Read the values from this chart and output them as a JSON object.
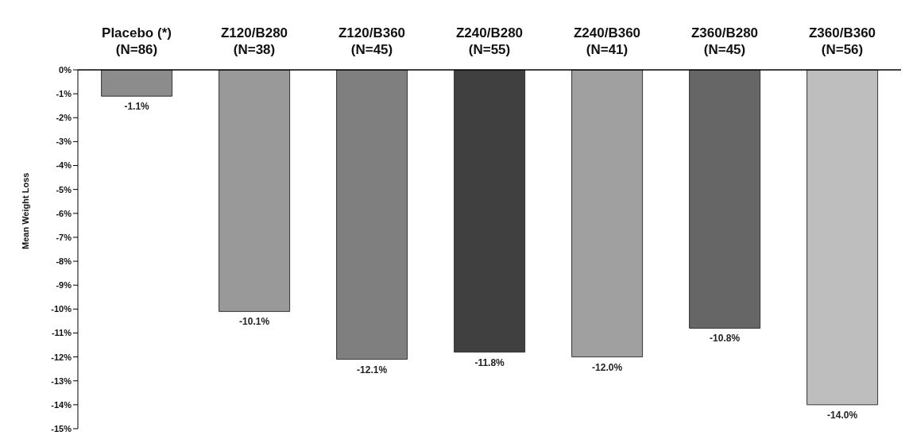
{
  "chart_data": {
    "type": "bar",
    "ylabel": "Mean Weight Loss",
    "categories": [
      "Placebo (*)\n(N=86)",
      "Z120/B280\n(N=38)",
      "Z120/B360\n(N=45)",
      "Z240/B280\n(N=55)",
      "Z240/B360\n(N=41)",
      "Z360/B280\n(N=45)",
      "Z360/B360\n(N=56)"
    ],
    "values": [
      -1.1,
      -10.1,
      -12.1,
      -11.8,
      -12.0,
      -10.8,
      -14.0
    ],
    "colors": [
      "#8c8c8c",
      "#999999",
      "#7f7f7f",
      "#404040",
      "#a0a0a0",
      "#666666",
      "#bebebe"
    ],
    "value_labels": [
      "-1.1%",
      "-10.1%",
      "-12.1%",
      "-11.8%",
      "-12.0%",
      "-10.8%",
      "-14.0%"
    ],
    "ylim": [
      -15,
      0
    ],
    "yticks": [
      {
        "value": 0,
        "label": "0%"
      },
      {
        "value": -1,
        "label": "-1%"
      },
      {
        "value": -2,
        "label": "-2%"
      },
      {
        "value": -3,
        "label": "-3%"
      },
      {
        "value": -4,
        "label": "-4%"
      },
      {
        "value": -5,
        "label": "-5%"
      },
      {
        "value": -6,
        "label": "-6%"
      },
      {
        "value": -7,
        "label": "-7%"
      },
      {
        "value": -8,
        "label": "-8%"
      },
      {
        "value": -9,
        "label": "-9%"
      },
      {
        "value": -10,
        "label": "-10%"
      },
      {
        "value": -11,
        "label": "-11%"
      },
      {
        "value": -12,
        "label": "-12%"
      },
      {
        "value": -13,
        "label": "-13%"
      },
      {
        "value": -14,
        "label": "-14%"
      },
      {
        "value": -15,
        "label": "-15%"
      }
    ],
    "grid": false,
    "legend": false
  }
}
